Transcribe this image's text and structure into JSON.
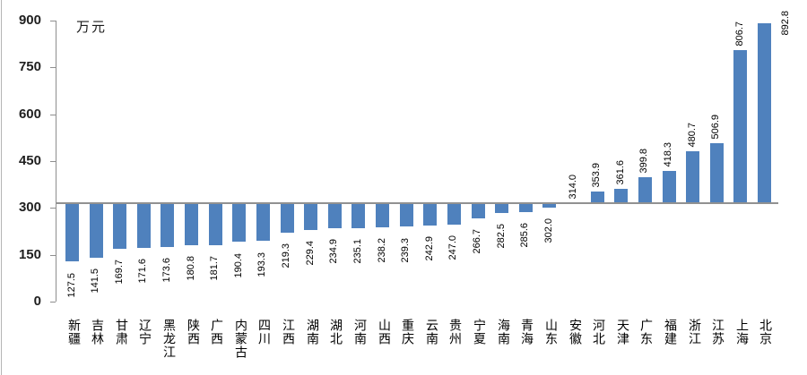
{
  "chart_data": {
    "type": "bar",
    "unit_label": "万元",
    "categories": [
      "新疆",
      "吉林",
      "甘肃",
      "辽宁",
      "黑龙江",
      "陕西",
      "广西",
      "内蒙古",
      "四川",
      "江西",
      "湖南",
      "湖北",
      "河南",
      "山西",
      "重庆",
      "云南",
      "贵州",
      "宁夏",
      "海南",
      "青海",
      "山东",
      "安徽",
      "河北",
      "天津",
      "广东",
      "福建",
      "浙江",
      "江苏",
      "上海",
      "北京"
    ],
    "values": [
      127.5,
      141.5,
      169.7,
      171.6,
      173.6,
      180.8,
      181.7,
      190.4,
      193.3,
      219.3,
      229.4,
      234.9,
      235.1,
      238.2,
      239.3,
      242.9,
      247.0,
      266.7,
      282.5,
      285.6,
      302.0,
      314.0,
      353.9,
      361.6,
      399.8,
      418.3,
      480.7,
      506.9,
      806.7,
      892.8
    ],
    "value_label_decimals": 1,
    "ylim": [
      0,
      900
    ],
    "yticks": [
      0,
      150,
      300,
      450,
      600,
      750,
      900
    ],
    "axis_cross": 314,
    "grid": false,
    "legend": "none",
    "colors": {
      "bar": "#4f81bd",
      "axis": "#8e8e8e",
      "baseline": "#919191",
      "tick_text": "#1f1f1f",
      "label_text": "#000000"
    }
  }
}
